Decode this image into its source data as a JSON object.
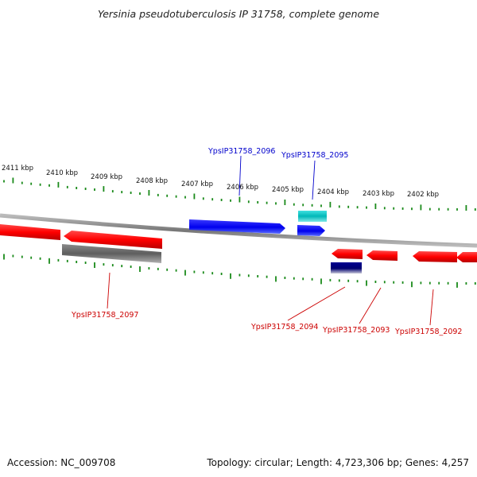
{
  "title": "Yersinia pseudotuberculosis IP 31758, complete genome",
  "footer": {
    "accession": "Accession: NC_009708",
    "topology": "Topology: circular; Length: 4,723,306 bp; Genes: 4,257"
  },
  "colors": {
    "forward_gene": "#0000ee",
    "reverse_gene": "#ff0000",
    "rna_gene": "#00c0c0",
    "pseudo_gene": "#777777",
    "dark_gene": "#000080",
    "ticks": "#1a8a1a",
    "backbone": "#888888"
  },
  "kbp_labels": [
    "2411 kbp",
    "2410 kbp",
    "2409 kbp",
    "2408 kbp",
    "2407 kbp",
    "2406 kbp",
    "2405 kbp",
    "2404 kbp",
    "2403 kbp",
    "2402 kbp"
  ],
  "gene_labels": {
    "g2096": "YpsIP31758_2096",
    "g2095": "YpsIP31758_2095",
    "g2097": "YpsIP31758_2097",
    "g2094": "YpsIP31758_2094",
    "g2093": "YpsIP31758_2093",
    "g2092": "YpsIP31758_2092"
  }
}
